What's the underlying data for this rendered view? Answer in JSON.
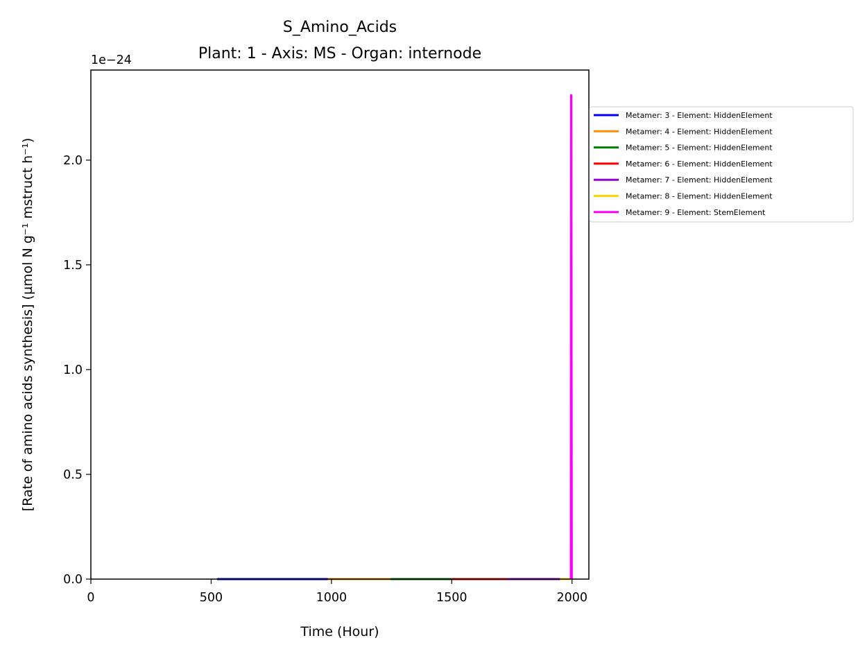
{
  "chart_data": {
    "type": "line",
    "title": "S_Amino_Acids",
    "subtitle": "Plant: 1 - Axis: MS - Organ: internode",
    "xlabel": "Time (Hour)",
    "ylabel": "[Rate of amino acids synthesis] (µmol N g⁻¹ mstruct h⁻¹)",
    "y_offset_label": "1e−24",
    "xlim": [
      0,
      2070
    ],
    "ylim": [
      0,
      2.43
    ],
    "x_ticks": [
      0,
      500,
      1000,
      1500,
      2000
    ],
    "x_tick_labels": [
      "0",
      "500",
      "1000",
      "1500",
      "2000"
    ],
    "y_ticks": [
      0.0,
      0.5,
      1.0,
      1.5,
      2.0
    ],
    "y_tick_labels": [
      "0.0",
      "0.5",
      "1.0",
      "1.5",
      "2.0"
    ],
    "grid": false,
    "legend_position": "outside-right",
    "series": [
      {
        "name": "Metamer: 3 - Element: HiddenElement",
        "color": "#0000ff",
        "x": [
          525,
          985
        ],
        "y": [
          0,
          0
        ]
      },
      {
        "name": "Metamer: 4 - Element: HiddenElement",
        "color": "#ff8c00",
        "x": [
          985,
          1245
        ],
        "y": [
          0,
          0
        ]
      },
      {
        "name": "Metamer: 5 - Element: HiddenElement",
        "color": "#008000",
        "x": [
          1245,
          1500
        ],
        "y": [
          0,
          0
        ]
      },
      {
        "name": "Metamer: 6 - Element: HiddenElement",
        "color": "#ff0000",
        "x": [
          1500,
          1730
        ],
        "y": [
          0,
          0
        ]
      },
      {
        "name": "Metamer: 7 - Element: HiddenElement",
        "color": "#9400d3",
        "x": [
          1730,
          1950
        ],
        "y": [
          0,
          0
        ]
      },
      {
        "name": "Metamer: 8 - Element: HiddenElement",
        "color": "#ffd700",
        "x": [
          1950,
          1995
        ],
        "y": [
          0,
          0
        ]
      },
      {
        "name": "Metamer: 9 - Element: StemElement",
        "color": "#ff00ff",
        "x": [
          1995,
          1996,
          1997,
          1998,
          1999
        ],
        "y": [
          0,
          2.31,
          2.31,
          1.2,
          0
        ]
      }
    ]
  }
}
